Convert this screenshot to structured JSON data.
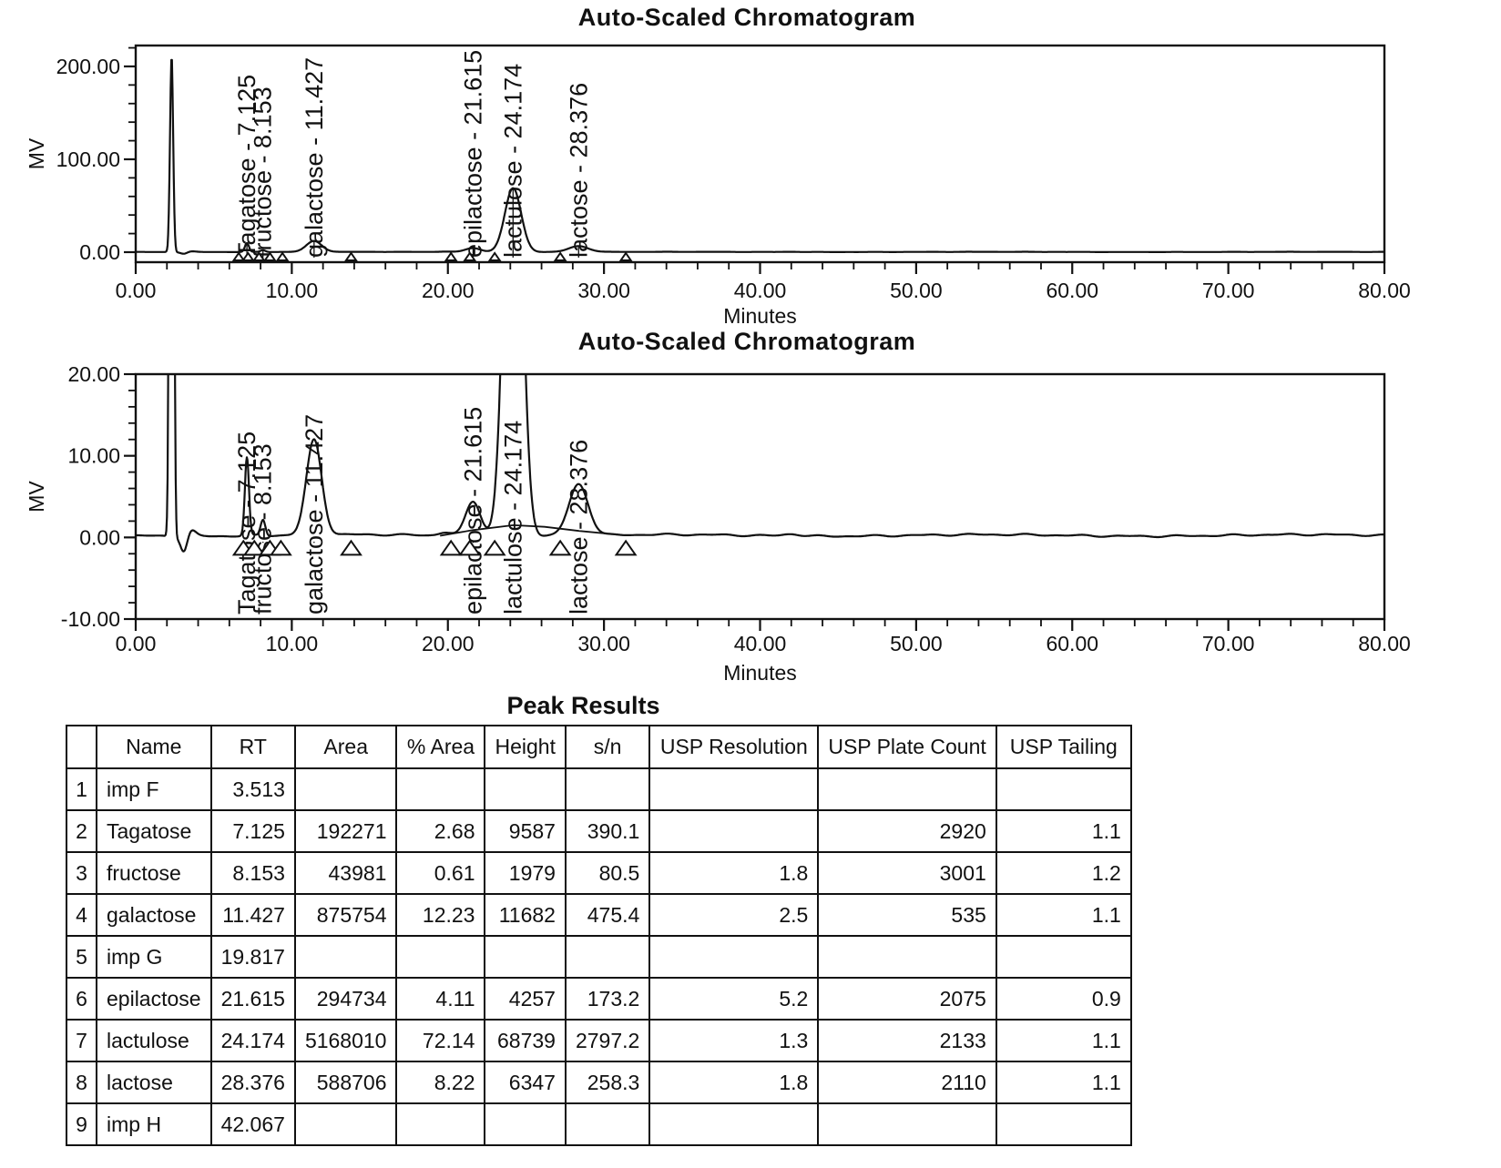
{
  "page": {
    "background": "#ffffff",
    "line_color": "#111111"
  },
  "chart_data": [
    {
      "id": "chromatogram-top",
      "type": "line",
      "title": "Auto-Scaled Chromatogram",
      "xlabel": "Minutes",
      "ylabel": "MV",
      "xlim": [
        0,
        80
      ],
      "ylim": [
        -10.8,
        222.5
      ],
      "grid": false,
      "x_ticks": {
        "major_step": 10,
        "minor_step": 2,
        "labels": [
          "0.00",
          "10.00",
          "20.00",
          "30.00",
          "40.00",
          "50.00",
          "60.00",
          "70.00",
          "80.00"
        ]
      },
      "y_ticks": {
        "minor_step": 20,
        "major": [
          {
            "value": 0,
            "label": "0.00"
          },
          {
            "value": 100,
            "label": "100.00"
          },
          {
            "value": 200,
            "label": "200.00"
          }
        ]
      },
      "baseline": {
        "offset": 0.25,
        "noise_amp": 0.07,
        "slow_amp": 0.1
      },
      "peaks": [
        {
          "name": "injection-front",
          "rt": 2.3,
          "height_mv": 211,
          "sigma": 0.1,
          "label": ""
        },
        {
          "name": "artifact-dip",
          "rt": 3.1,
          "height_mv": -2.1,
          "sigma": 0.22,
          "label": ""
        },
        {
          "name": "imp F",
          "rt": 3.513,
          "height_mv": 0.8,
          "sigma": 0.3,
          "label": ""
        },
        {
          "name": "Tagatose",
          "rt": 7.125,
          "height_mv": 9.55,
          "sigma": 0.13,
          "label": "Tagatose - 7.125"
        },
        {
          "name": "fructose",
          "rt": 8.153,
          "height_mv": 1.95,
          "sigma": 0.15,
          "label": "fructose - 8.153"
        },
        {
          "name": "galactose",
          "rt": 11.427,
          "height_mv": 11.65,
          "sigma": 0.49,
          "label": "galactose - 11.427"
        },
        {
          "name": "imp G",
          "rt": 19.817,
          "height_mv": 0.4,
          "sigma": 0.4,
          "label": ""
        },
        {
          "name": "epilactose",
          "rt": 21.615,
          "height_mv": 4.25,
          "sigma": 0.47,
          "label": "epilactose - 21.615"
        },
        {
          "name": "lactulose",
          "rt": 24.174,
          "height_mv": 68.7,
          "sigma": 0.52,
          "label": "lactulose - 24.174"
        },
        {
          "name": "lactose",
          "rt": 28.376,
          "height_mv": 6.3,
          "sigma": 0.62,
          "label": "lactose - 28.376"
        },
        {
          "name": "imp H",
          "rt": 42.067,
          "height_mv": 0.25,
          "sigma": 0.5,
          "label": ""
        }
      ],
      "integration_markers": [
        6.6,
        7.2,
        7.9,
        8.6,
        9.4,
        13.8,
        20.2,
        21.4,
        23.0,
        27.2,
        31.4
      ]
    },
    {
      "id": "chromatogram-zoomed",
      "type": "line",
      "title": "Auto-Scaled Chromatogram",
      "xlabel": "Minutes",
      "ylabel": "MV",
      "xlim": [
        0,
        80
      ],
      "ylim": [
        -10,
        20
      ],
      "grid": false,
      "x_ticks": {
        "major_step": 10,
        "minor_step": 2,
        "labels": [
          "0.00",
          "10.00",
          "20.00",
          "30.00",
          "40.00",
          "50.00",
          "60.00",
          "70.00",
          "80.00"
        ]
      },
      "y_ticks": {
        "minor_step": 2,
        "major": [
          {
            "value": -10,
            "label": "-10.00"
          },
          {
            "value": 0,
            "label": "0.00"
          },
          {
            "value": 10,
            "label": "10.00"
          },
          {
            "value": 20,
            "label": "20.00"
          }
        ]
      },
      "baseline": {
        "offset": 0.25,
        "noise_amp": 0.07,
        "slow_amp": 0.1
      },
      "peaks": [
        {
          "name": "injection-front",
          "rt": 2.3,
          "height_mv": 211,
          "sigma": 0.1,
          "label": ""
        },
        {
          "name": "artifact-dip",
          "rt": 3.1,
          "height_mv": -2.1,
          "sigma": 0.22,
          "label": ""
        },
        {
          "name": "imp F",
          "rt": 3.513,
          "height_mv": 0.8,
          "sigma": 0.3,
          "label": ""
        },
        {
          "name": "Tagatose",
          "rt": 7.125,
          "height_mv": 9.55,
          "sigma": 0.13,
          "label": "Tagatose - 7.125"
        },
        {
          "name": "fructose",
          "rt": 8.153,
          "height_mv": 1.95,
          "sigma": 0.15,
          "label": "fructose - 8.153"
        },
        {
          "name": "galactose",
          "rt": 11.427,
          "height_mv": 11.65,
          "sigma": 0.49,
          "label": "galactose - 11.427"
        },
        {
          "name": "imp G",
          "rt": 19.817,
          "height_mv": 0.4,
          "sigma": 0.4,
          "label": ""
        },
        {
          "name": "epilactose",
          "rt": 21.615,
          "height_mv": 4.25,
          "sigma": 0.47,
          "label": "epilactose - 21.615"
        },
        {
          "name": "lactulose",
          "rt": 24.174,
          "height_mv": 68.7,
          "sigma": 0.52,
          "label": "lactulose - 24.174"
        },
        {
          "name": "lactose",
          "rt": 28.376,
          "height_mv": 6.3,
          "sigma": 0.62,
          "label": "lactose - 28.376"
        },
        {
          "name": "imp H",
          "rt": 42.067,
          "height_mv": 0.25,
          "sigma": 0.5,
          "label": ""
        }
      ],
      "integration_markers": [
        6.9,
        7.6,
        8.6,
        9.3,
        13.8,
        20.2,
        21.4,
        23.0,
        27.2,
        31.4
      ],
      "integration_baseline": [
        [
          19.5,
          0.2
        ],
        [
          21.6,
          0.9
        ],
        [
          24.2,
          1.5
        ],
        [
          26.2,
          1.3
        ],
        [
          28.4,
          0.8
        ],
        [
          31.4,
          0.25
        ]
      ]
    }
  ],
  "table": {
    "title": "Peak Results",
    "columns": [
      "",
      "Name",
      "RT",
      "Area",
      "% Area",
      "Height",
      "s/n",
      "USP Resolution",
      "USP Plate Count",
      "USP Tailing"
    ],
    "rows": [
      [
        "1",
        "imp F",
        "3.513",
        "",
        "",
        "",
        "",
        "",
        "",
        ""
      ],
      [
        "2",
        "Tagatose",
        "7.125",
        "192271",
        "2.68",
        "9587",
        "390.1",
        "",
        "2920",
        "1.1"
      ],
      [
        "3",
        "fructose",
        "8.153",
        "43981",
        "0.61",
        "1979",
        "80.5",
        "1.8",
        "3001",
        "1.2"
      ],
      [
        "4",
        "galactose",
        "11.427",
        "875754",
        "12.23",
        "11682",
        "475.4",
        "2.5",
        "535",
        "1.1"
      ],
      [
        "5",
        "imp G",
        "19.817",
        "",
        "",
        "",
        "",
        "",
        "",
        ""
      ],
      [
        "6",
        "epilactose",
        "21.615",
        "294734",
        "4.11",
        "4257",
        "173.2",
        "5.2",
        "2075",
        "0.9"
      ],
      [
        "7",
        "lactulose",
        "24.174",
        "5168010",
        "72.14",
        "68739",
        "2797.2",
        "1.3",
        "2133",
        "1.1"
      ],
      [
        "8",
        "lactose",
        "28.376",
        "588706",
        "8.22",
        "6347",
        "258.3",
        "1.8",
        "2110",
        "1.1"
      ],
      [
        "9",
        "imp H",
        "42.067",
        "",
        "",
        "",
        "",
        "",
        "",
        ""
      ]
    ]
  }
}
